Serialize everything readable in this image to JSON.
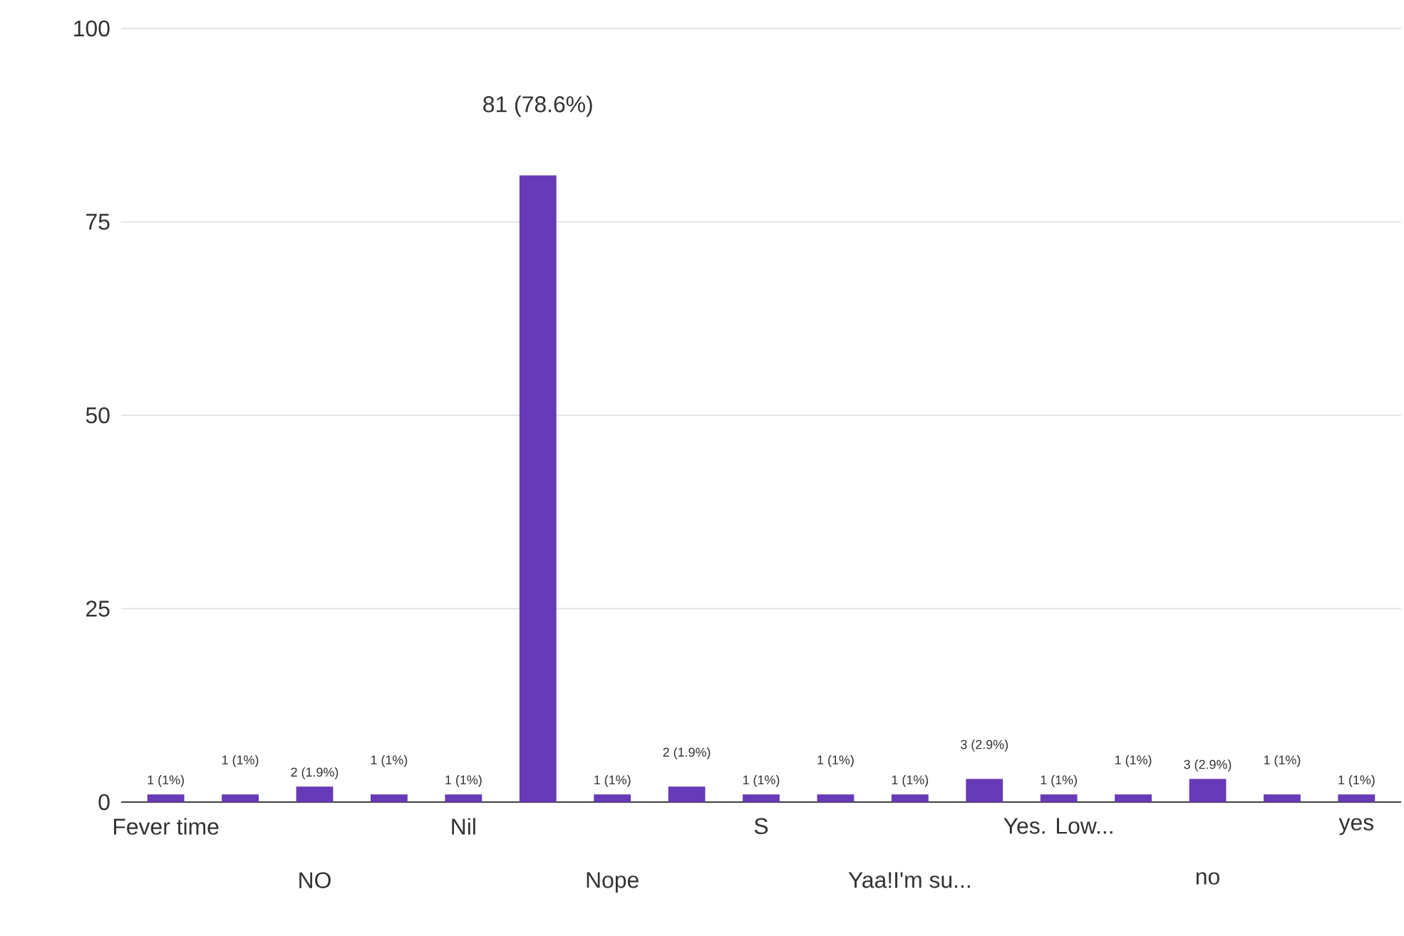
{
  "chart_data": {
    "type": "bar",
    "categories": [
      "Fever time",
      null,
      "NO",
      null,
      "Nil",
      null,
      "Nope",
      null,
      "S",
      null,
      "Yaa!I'm su...",
      null,
      "Yes. Low...",
      null,
      "no",
      null,
      "yes"
    ],
    "values": [
      1,
      1,
      2,
      1,
      1,
      81,
      1,
      2,
      1,
      1,
      1,
      3,
      1,
      1,
      3,
      1,
      1
    ],
    "value_labels": [
      "1 (1%)",
      "1 (1%)",
      "2 (1.9%)",
      "1 (1%)",
      "1 (1%)",
      "81 (78.6%)",
      "1 (1%)",
      "2 (1.9%)",
      "1 (1%)",
      "1 (1%)",
      "1 (1%)",
      "3 (2.9%)",
      "1 (1%)",
      "1 (1%)",
      "3 (2.9%)",
      "1 (1%)",
      "1 (1%)"
    ],
    "color": "#673ab7",
    "ylim": [
      0,
      100
    ],
    "yticks": [
      0,
      25,
      50,
      75,
      100
    ],
    "grid": "y"
  }
}
